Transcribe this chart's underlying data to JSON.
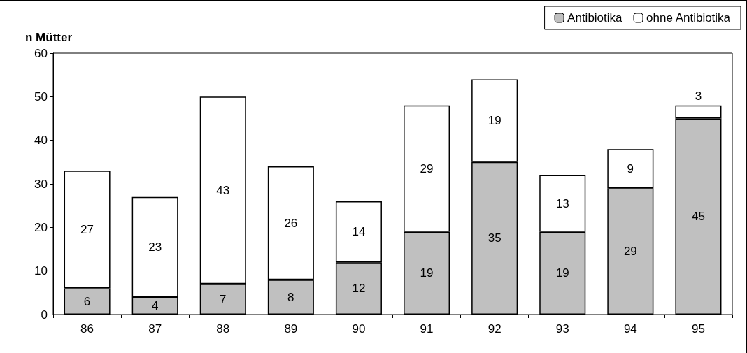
{
  "chart_data": {
    "type": "bar",
    "ylabel": "n Mütter",
    "stacked": true,
    "categories": [
      "86",
      "87",
      "88",
      "89",
      "90",
      "91",
      "92",
      "93",
      "94",
      "95"
    ],
    "series": [
      {
        "name": "Antibiotika",
        "color": "#c0c0c0",
        "values": [
          6,
          4,
          7,
          8,
          12,
          19,
          35,
          19,
          29,
          45
        ]
      },
      {
        "name": "ohne Antibiotika",
        "color": "#ffffff",
        "values": [
          27,
          23,
          43,
          26,
          14,
          29,
          19,
          13,
          9,
          3
        ]
      }
    ],
    "ylim": [
      0,
      60
    ],
    "yticks": [
      0,
      10,
      20,
      30,
      40,
      50,
      60
    ],
    "grid": false,
    "legend": "top right",
    "data_labels": true
  }
}
